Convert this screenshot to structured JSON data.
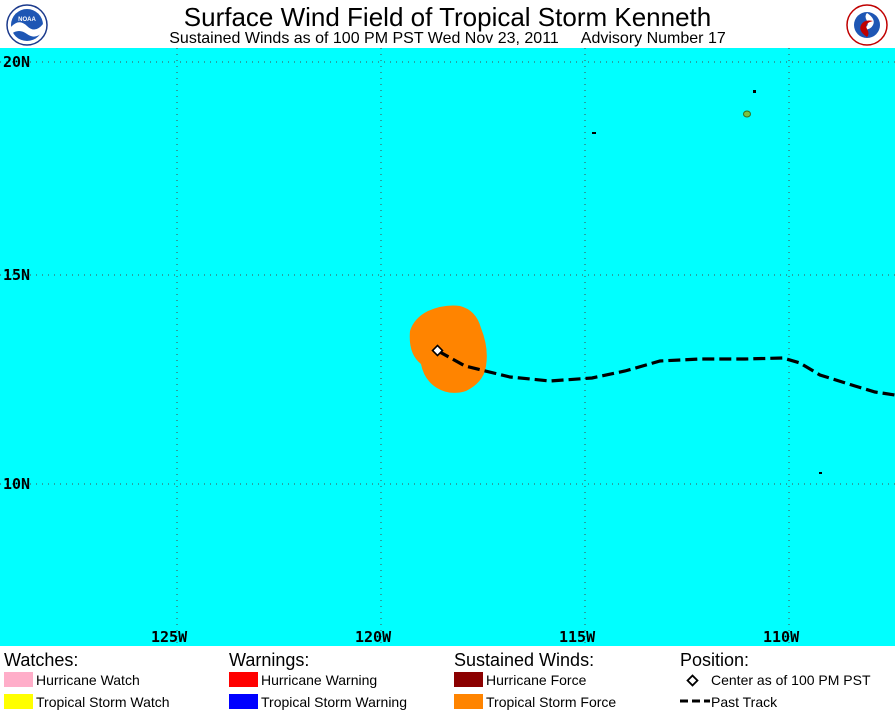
{
  "header": {
    "title": "Surface Wind Field of Tropical Storm Kenneth",
    "subtitle_time": "Sustained Winds as of 100 PM PST Wed Nov 23, 2011",
    "subtitle_advisory": "Advisory Number 17"
  },
  "logos": {
    "left": "noaa-logo",
    "right": "national-weather-service-logo"
  },
  "map": {
    "ocean_color": "#00ffff",
    "land_color": "#7ac142",
    "lat_labels": [
      "20N",
      "15N",
      "10N"
    ],
    "lon_labels": [
      "125W",
      "120W",
      "115W",
      "110W"
    ],
    "storm_color": "#ff8400",
    "track_color": "#000000"
  },
  "legend": {
    "watches": {
      "heading": "Watches:",
      "items": [
        {
          "label": "Hurricane Watch",
          "color": "#ffaec9"
        },
        {
          "label": "Tropical Storm Watch",
          "color": "#ffff00"
        }
      ]
    },
    "warnings": {
      "heading": "Warnings:",
      "items": [
        {
          "label": "Hurricane Warning",
          "color": "#ff0000"
        },
        {
          "label": "Tropical Storm Warning",
          "color": "#0000ff"
        }
      ]
    },
    "winds": {
      "heading": "Sustained Winds:",
      "items": [
        {
          "label": "Hurricane Force",
          "color": "#8b0000"
        },
        {
          "label": "Tropical Storm Force",
          "color": "#ff8400"
        }
      ]
    },
    "position": {
      "heading": "Position:",
      "center_label": "Center as of 100 PM PST",
      "track_label": "Past Track"
    }
  }
}
